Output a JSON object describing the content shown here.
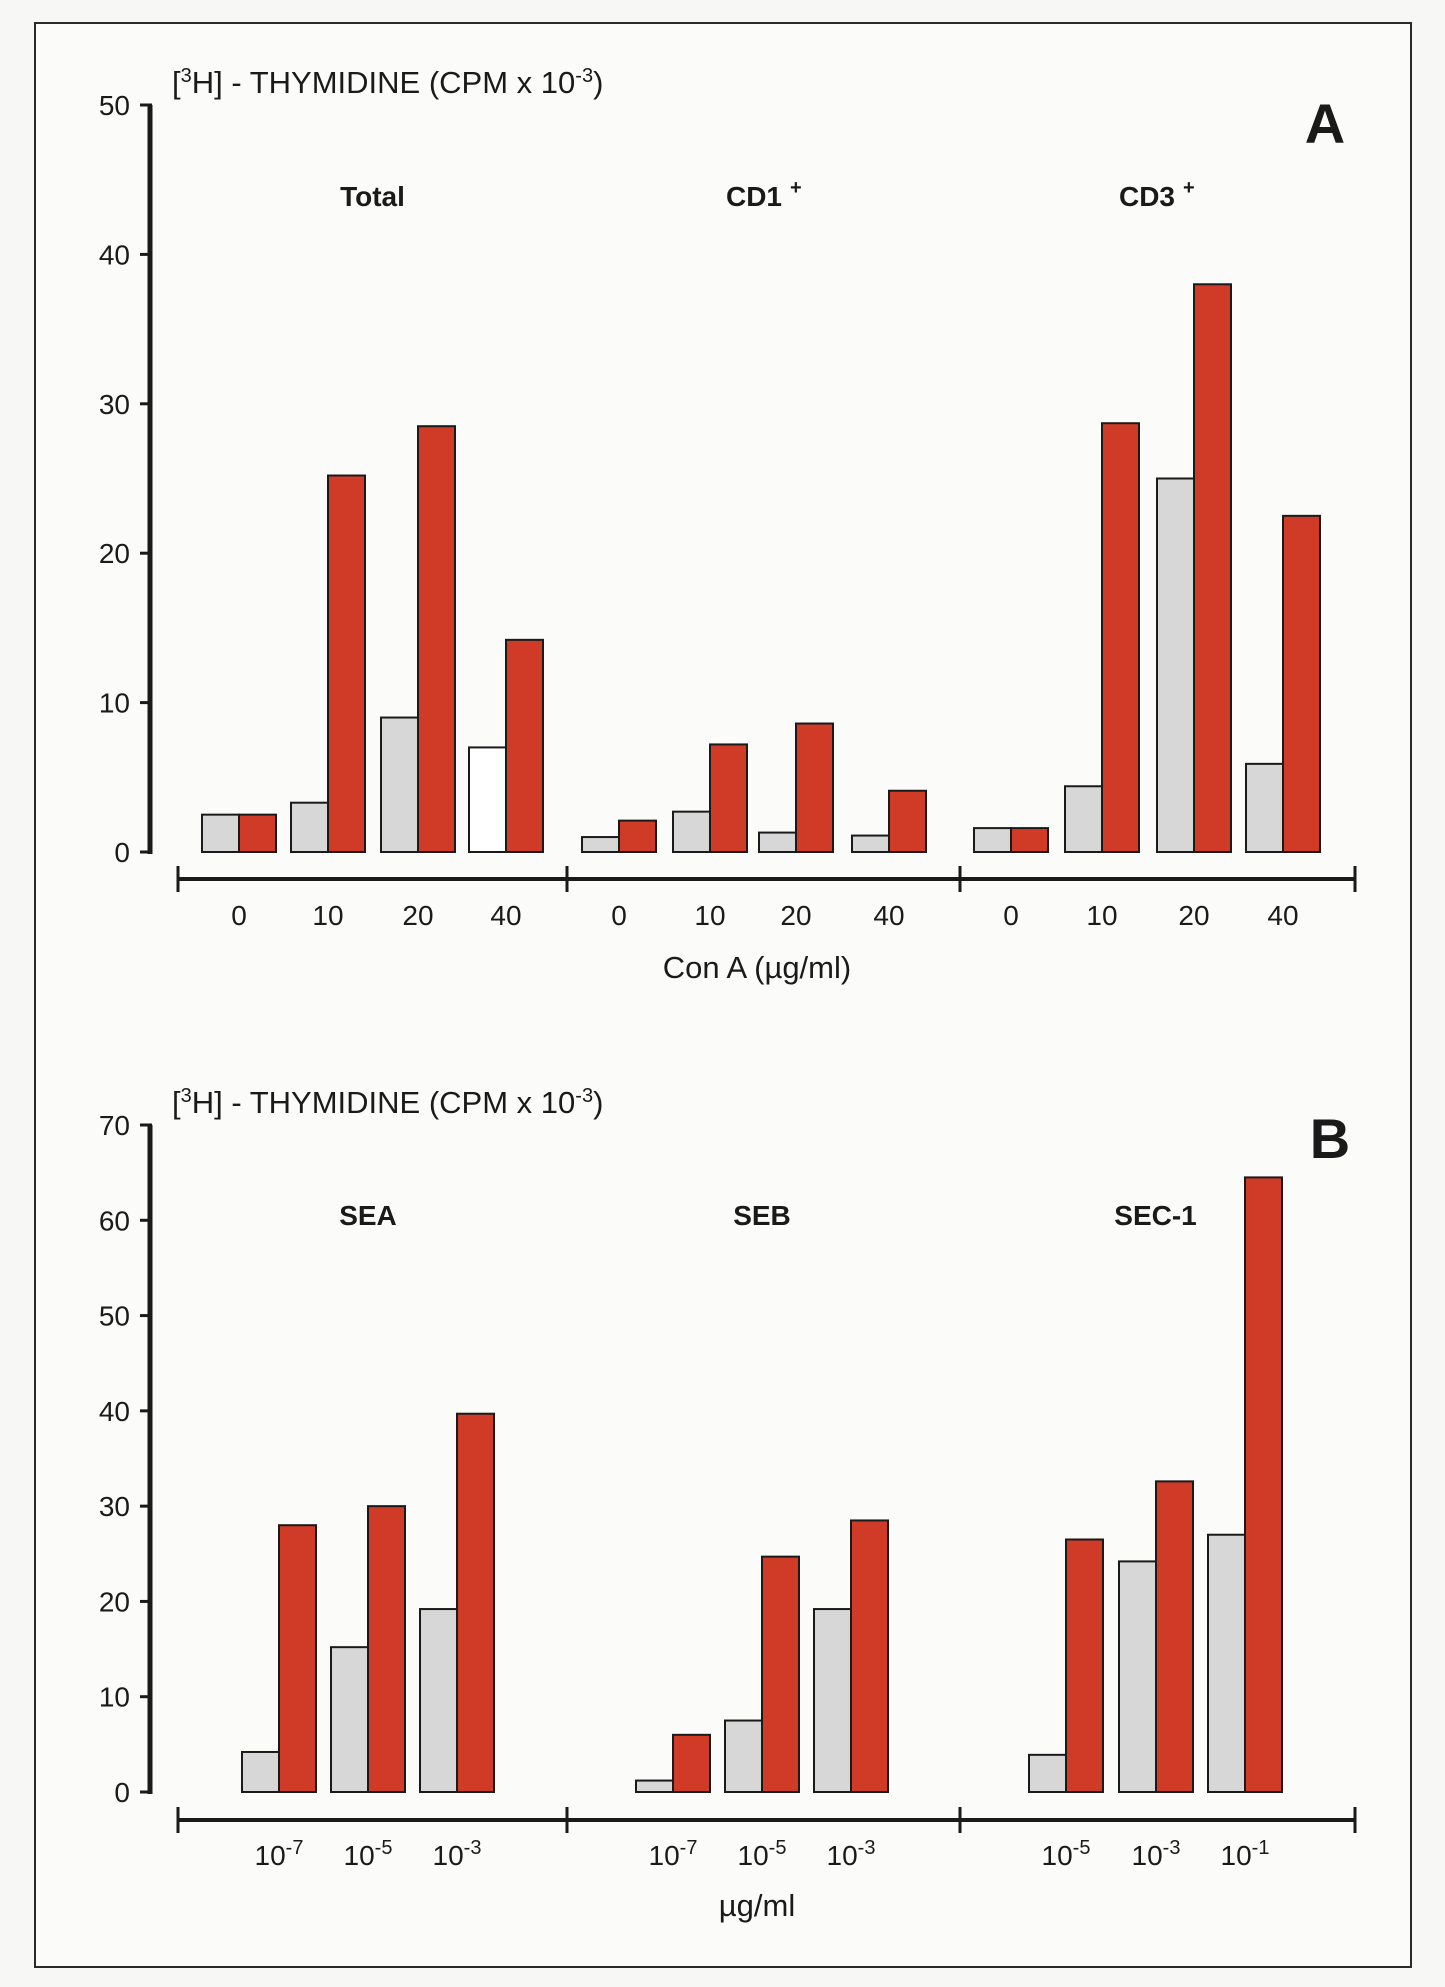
{
  "colors": {
    "control": "#d7d7d7",
    "treated": "#cf3b27",
    "white_bar": "#ffffff",
    "axis": "#1a1a1a"
  },
  "chart_data": [
    {
      "type": "bar",
      "panel": "A",
      "ylabel": "[3H] - THYMIDINE (CPM x 10-3)",
      "xlabel": "Con A (µg/ml)",
      "ylim": [
        0,
        50
      ],
      "yticks": [
        0,
        10,
        20,
        30,
        40,
        50
      ],
      "groups": [
        {
          "label": "Total",
          "sup": "",
          "categories": [
            "0",
            "10",
            "20",
            "40"
          ],
          "series": [
            {
              "values": [
                2.5,
                3.3,
                9.0,
                7.0
              ]
            },
            {
              "values": [
                2.5,
                25.2,
                28.5,
                14.2
              ]
            }
          ]
        },
        {
          "label": "CD1",
          "sup": "+",
          "categories": [
            "0",
            "10",
            "20",
            "40"
          ],
          "series": [
            {
              "values": [
                1.0,
                2.7,
                1.3,
                1.1
              ]
            },
            {
              "values": [
                2.1,
                7.2,
                8.6,
                4.1
              ]
            }
          ]
        },
        {
          "label": "CD3",
          "sup": "+",
          "categories": [
            "0",
            "10",
            "20",
            "40"
          ],
          "series": [
            {
              "values": [
                1.6,
                4.4,
                25.0,
                5.9
              ]
            },
            {
              "values": [
                1.6,
                28.7,
                38.0,
                22.5
              ]
            }
          ]
        }
      ]
    },
    {
      "type": "bar",
      "panel": "B",
      "ylabel": "[3H] - THYMIDINE (CPM x 10-3)",
      "xlabel": "µg/ml",
      "ylim": [
        0,
        70
      ],
      "yticks": [
        0,
        10,
        20,
        30,
        40,
        50,
        60,
        70
      ],
      "groups": [
        {
          "label": "SEA",
          "sup": "",
          "categories": [
            "10-7",
            "10-5",
            "10-3"
          ],
          "series": [
            {
              "values": [
                4.2,
                15.2,
                19.2
              ]
            },
            {
              "values": [
                28.0,
                30.0,
                39.7
              ]
            }
          ]
        },
        {
          "label": "SEB",
          "sup": "",
          "categories": [
            "10-7",
            "10-5",
            "10-3"
          ],
          "series": [
            {
              "values": [
                1.2,
                7.5,
                19.2
              ]
            },
            {
              "values": [
                6.0,
                24.7,
                28.5
              ]
            }
          ]
        },
        {
          "label": "SEC-1",
          "sup": "",
          "categories": [
            "10-5",
            "10-3",
            "10-1"
          ],
          "series": [
            {
              "values": [
                3.9,
                24.2,
                27.0
              ]
            },
            {
              "values": [
                26.5,
                32.6,
                64.5
              ]
            }
          ]
        }
      ]
    }
  ]
}
